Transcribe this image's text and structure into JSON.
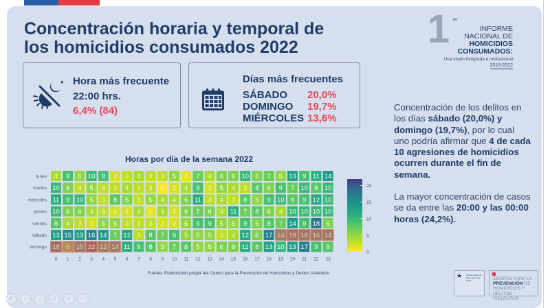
{
  "header": {
    "title_line1": "Concentración horaria y temporal de",
    "title_line2": "los homicidios consumados 2022"
  },
  "report_logo": {
    "number": "1",
    "superscript": "er",
    "line1": "INFORME",
    "line2": "NACIONAL DE",
    "line3": "HOMICIDIOS",
    "line4": "CONSUMADOS:",
    "subtitle": "Una visión integrada e institucional",
    "years": "2018-2022"
  },
  "card_hour": {
    "icon": "day-night-icon",
    "label": "Hora más frecuente",
    "hour": "22:00 hrs.",
    "pct": "6,4% (84)"
  },
  "card_days": {
    "icon": "calendar-icon",
    "label": "Días más frecuentes",
    "days": [
      {
        "name": "SÁBADO",
        "pct": "20,0%"
      },
      {
        "name": "DOMINGO",
        "pct": "19,7%"
      },
      {
        "name": "MIÉRCOLES",
        "pct": "13,6%"
      }
    ]
  },
  "summary": {
    "p1_a": "Concentración de los delitos en los días ",
    "p1_b": "sábado (20,0%) y domingo (19,7%)",
    "p1_c": ", por lo cual uno podría afirmar que ",
    "p1_d": "4 de cada 10 agresiones de homicidios ocurren durante el fin de semana.",
    "p2_a": "La mayor concentración de casos se da entre las ",
    "p2_b": "20:00 y las 00:00 horas (24,2%)."
  },
  "chart_data": {
    "type": "heatmap",
    "title": "Horas por día de la semana 2022",
    "xlabel": "",
    "ylabel": "",
    "x": [
      "0",
      "1",
      "2",
      "3",
      "4",
      "5",
      "6",
      "7",
      "8",
      "9",
      "10",
      "11",
      "12",
      "13",
      "14",
      "15",
      "16",
      "17",
      "18",
      "19",
      "20",
      "21",
      "22",
      "23"
    ],
    "y": [
      "lunes",
      "martes",
      "miércoles",
      "jueves",
      "viernes",
      "sábado",
      "domingo"
    ],
    "values": [
      [
        4,
        9,
        5,
        10,
        9,
        2,
        3,
        4,
        3,
        3,
        5,
        1,
        7,
        4,
        6,
        6,
        10,
        6,
        7,
        5,
        13,
        9,
        11,
        14
      ],
      [
        10,
        6,
        3,
        5,
        3,
        3,
        4,
        3,
        3,
        0,
        2,
        4,
        9,
        2,
        5,
        4,
        3,
        8,
        6,
        9,
        7,
        10,
        8,
        10
      ],
      [
        11,
        9,
        10,
        5,
        3,
        8,
        6,
        3,
        5,
        4,
        4,
        6,
        11,
        3,
        4,
        3,
        8,
        5,
        9,
        10,
        8,
        9,
        12,
        10
      ],
      [
        10,
        6,
        6,
        4,
        3,
        2,
        2,
        4,
        1,
        4,
        2,
        6,
        7,
        6,
        4,
        11,
        7,
        8,
        6,
        4,
        10,
        10,
        10,
        10
      ],
      [
        8,
        4,
        3,
        2,
        5,
        5,
        3,
        3,
        3,
        2,
        2,
        5,
        9,
        9,
        5,
        5,
        9,
        6,
        8,
        7,
        14,
        9,
        18,
        6
      ],
      [
        13,
        15,
        13,
        16,
        14,
        7,
        12,
        3,
        8,
        7,
        9,
        5,
        5,
        5,
        3,
        4,
        12,
        6,
        17,
        14,
        18,
        16,
        16,
        14
      ],
      [
        18,
        6,
        15,
        22,
        12,
        14,
        11,
        9,
        8,
        5,
        7,
        8,
        5,
        5,
        6,
        6,
        11,
        8,
        13,
        10,
        13,
        17,
        9,
        8
      ]
    ],
    "colorbar": {
      "range": [
        0,
        22
      ],
      "ticks": [
        0,
        5,
        10,
        15,
        20
      ],
      "colormap": "viridis-reversed"
    },
    "highlights": [
      {
        "row": "sábado",
        "hours": [
          "19",
          "20",
          "21",
          "22",
          "23"
        ],
        "color": "#c9735a"
      },
      {
        "row": "domingo",
        "hours": [
          "0",
          "1",
          "2",
          "3",
          "4",
          "5"
        ],
        "color": "#c9735a"
      }
    ]
  },
  "source": "Fuente: Elaboración propia del Centro para la Prevención de Homicidios y Delitos Violentos",
  "footer_logos": {
    "gov_text": "Subsecretaría de Prevención del Delito",
    "gov_sub": "Gobierno de Chile",
    "centro_l1": "CENTRO PARA LA",
    "centro_l2a": "PREVENCIÓN",
    "centro_l2b": " DE",
    "centro_l3": "HOMICIDIOS Y",
    "centro_l4": "DELITOS VIOLENTOS"
  },
  "toolbar": [
    "phone-icon",
    "info-icon",
    "chat-icon",
    "print-icon",
    "zoom-icon",
    "more-icon"
  ]
}
